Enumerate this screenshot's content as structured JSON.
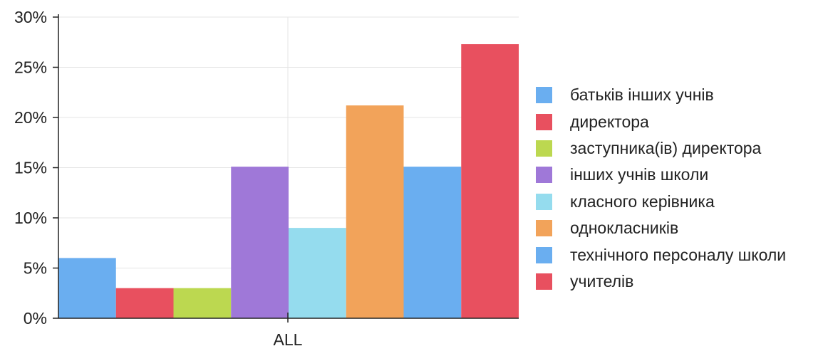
{
  "chart_data": {
    "type": "bar",
    "categories": [
      "ALL"
    ],
    "series": [
      {
        "name": "батьків інших учнів",
        "values": [
          6
        ],
        "color": "#6aaef0"
      },
      {
        "name": "директора",
        "values": [
          3
        ],
        "color": "#e8505f"
      },
      {
        "name": "заступника(ів) директора",
        "values": [
          3
        ],
        "color": "#bcd850"
      },
      {
        "name": "інших учнів школи",
        "values": [
          15.1
        ],
        "color": "#9f78d8"
      },
      {
        "name": "класного керівника",
        "values": [
          9
        ],
        "color": "#95dcee"
      },
      {
        "name": "однокласників",
        "values": [
          21.2
        ],
        "color": "#f2a35a"
      },
      {
        "name": "технічного персоналу школи",
        "values": [
          15.1
        ],
        "color": "#6aaef0"
      },
      {
        "name": "учителів",
        "values": [
          27.3
        ],
        "color": "#e8505f"
      }
    ],
    "ylim": [
      0,
      30
    ],
    "yticks": [
      "0%",
      "5%",
      "10%",
      "15%",
      "20%",
      "25%",
      "30%"
    ],
    "grid": true,
    "legend_position": "right"
  }
}
